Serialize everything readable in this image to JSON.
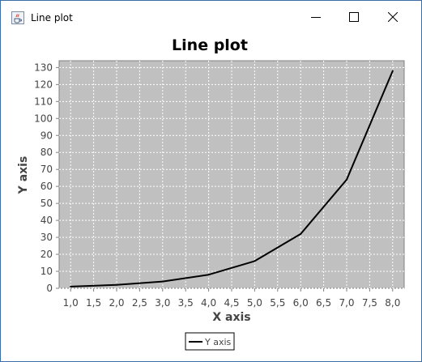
{
  "window": {
    "title": "Line plot",
    "icon": "java-cup-icon",
    "controls": [
      "minimize-icon",
      "maximize-icon",
      "close-icon"
    ]
  },
  "chart_data": {
    "type": "line",
    "title": "Line plot",
    "xlabel": "X axis",
    "ylabel": "Y axis",
    "xlim": [
      0.75,
      8.25
    ],
    "ylim": [
      0,
      134
    ],
    "x_ticks": [
      "1,0",
      "1,5",
      "2,0",
      "2,5",
      "3,0",
      "3,5",
      "4,0",
      "4,5",
      "5,0",
      "5,5",
      "6,0",
      "6,5",
      "7,0",
      "7,5",
      "8,0"
    ],
    "y_ticks": [
      "0",
      "10",
      "20",
      "30",
      "40",
      "50",
      "60",
      "70",
      "80",
      "90",
      "100",
      "110",
      "120",
      "130"
    ],
    "grid": true,
    "background": "#c0c0c0",
    "legend_position": "bottom",
    "series": [
      {
        "name": "Y axis",
        "color": "#000000",
        "x": [
          1,
          2,
          3,
          4,
          5,
          6,
          7,
          8
        ],
        "y": [
          1,
          2,
          4,
          8,
          16,
          32,
          64,
          128
        ]
      }
    ]
  }
}
